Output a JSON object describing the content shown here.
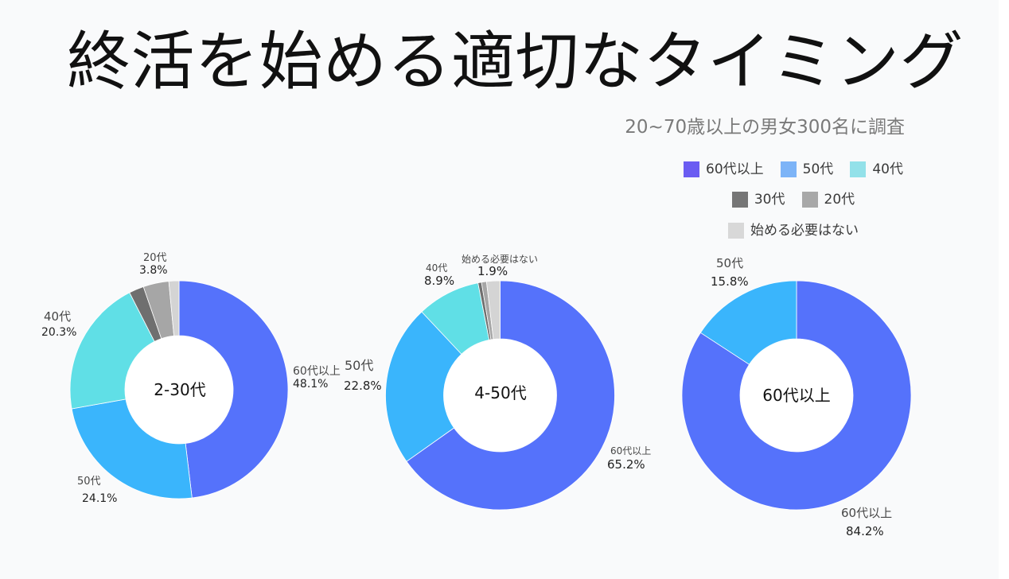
{
  "title": "終活を始める適切なタイミング",
  "subtitle": "20~70歳以上の男女300名に調査",
  "legend": {
    "position": "top-right",
    "items": [
      {
        "label": "60代以上",
        "color": "#6b5cf2"
      },
      {
        "label": "50代",
        "color": "#7db4f7"
      },
      {
        "label": "40代",
        "color": "#93e1e9"
      },
      {
        "label": "30代",
        "color": "#767676"
      },
      {
        "label": "20代",
        "color": "#a8a8a8"
      },
      {
        "label": "始める必要はない",
        "color": "#d8d8d8"
      }
    ]
  },
  "slice_colors": {
    "60代以上": "#5572fb",
    "50代": "#3ab5fc",
    "40代": "#60dfe6",
    "30代": "#6f6f6f",
    "20代": "#a6a6a6",
    "始める必要はない": "#d4d4d4"
  },
  "chart_data": [
    {
      "type": "pie",
      "donut": true,
      "center_label": "2-30代",
      "categories": [
        "60代以上",
        "50代",
        "40代",
        "30代",
        "20代",
        "始める必要はない"
      ],
      "values": [
        48.1,
        24.1,
        20.3,
        2.2,
        3.8,
        1.5
      ],
      "data_labels": [
        {
          "name": "20代",
          "value": "3.8%"
        },
        {
          "name": "40代",
          "value": "20.3%"
        },
        {
          "name": "60代以上",
          "value": "48.1%"
        },
        {
          "name": "50代",
          "value": "24.1%"
        }
      ]
    },
    {
      "type": "pie",
      "donut": true,
      "center_label": "4-50代",
      "categories": [
        "60代以上",
        "50代",
        "40代",
        "30代",
        "20代",
        "始める必要はない"
      ],
      "values": [
        65.2,
        22.8,
        8.9,
        0.5,
        0.7,
        1.9
      ],
      "data_labels": [
        {
          "name": "40代",
          "value": "8.9%"
        },
        {
          "name": "始める必要はない",
          "value": "1.9%"
        },
        {
          "name": "50代",
          "value": "22.8%"
        },
        {
          "name": "60代以上",
          "value": "65.2%"
        }
      ]
    },
    {
      "type": "pie",
      "donut": true,
      "center_label": "60代以上",
      "categories": [
        "60代以上",
        "50代"
      ],
      "values": [
        84.2,
        15.8
      ],
      "data_labels": [
        {
          "name": "50代",
          "value": "15.8%"
        },
        {
          "name": "60代以上",
          "value": "84.2%"
        }
      ]
    }
  ]
}
